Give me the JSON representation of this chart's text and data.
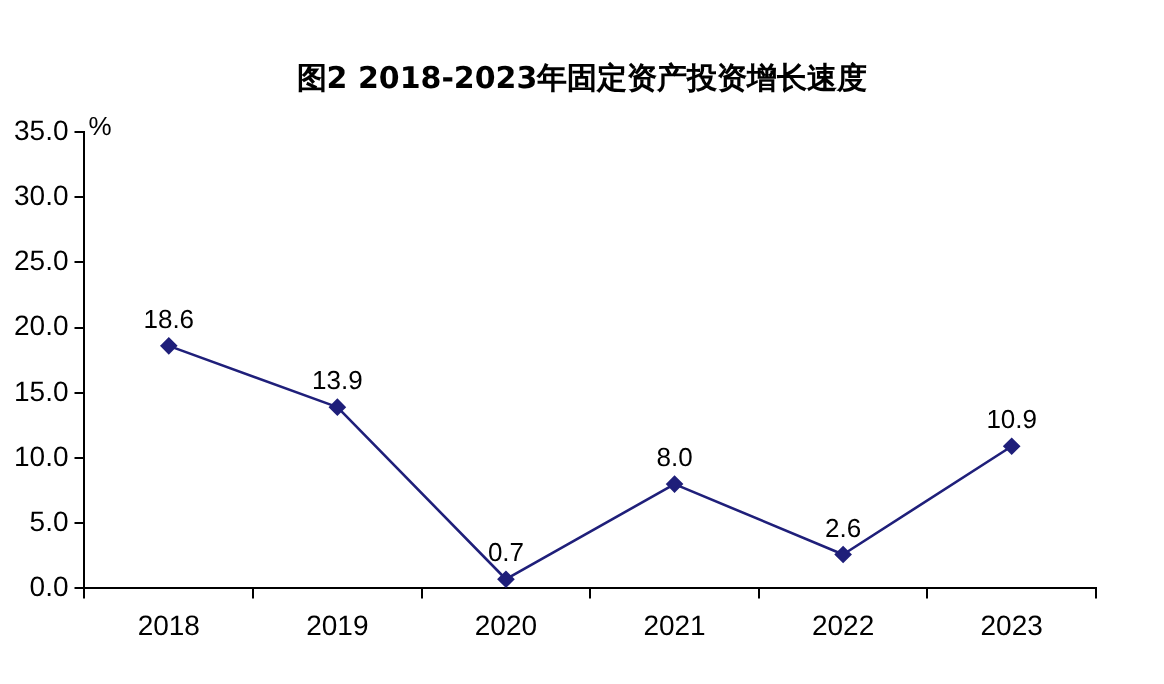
{
  "chart_data": {
    "type": "line",
    "title": "图2 2018-2023年固定资产投资增长速度",
    "ylabel": "%",
    "categories": [
      "2018",
      "2019",
      "2020",
      "2021",
      "2022",
      "2023"
    ],
    "series": [
      {
        "color": "#1f1f7a",
        "values": [
          18.6,
          13.9,
          0.7,
          8.0,
          2.6,
          10.9
        ],
        "value_labels": [
          "18.6",
          "13.9",
          "0.7",
          "8.0",
          "2.6",
          "10.9"
        ]
      }
    ],
    "ylim": [
      0,
      35
    ],
    "yticks": [
      {
        "value": 0,
        "label": "0.0"
      },
      {
        "value": 5,
        "label": "5.0"
      },
      {
        "value": 10,
        "label": "10.0"
      },
      {
        "value": 15,
        "label": "15.0"
      },
      {
        "value": 20,
        "label": "20.0"
      },
      {
        "value": 25,
        "label": "25.0"
      },
      {
        "value": 30,
        "label": "30.0"
      },
      {
        "value": 35,
        "label": "35.0"
      }
    ],
    "grid": false,
    "legend": false,
    "marker": "diamond",
    "line_style": "solid"
  }
}
